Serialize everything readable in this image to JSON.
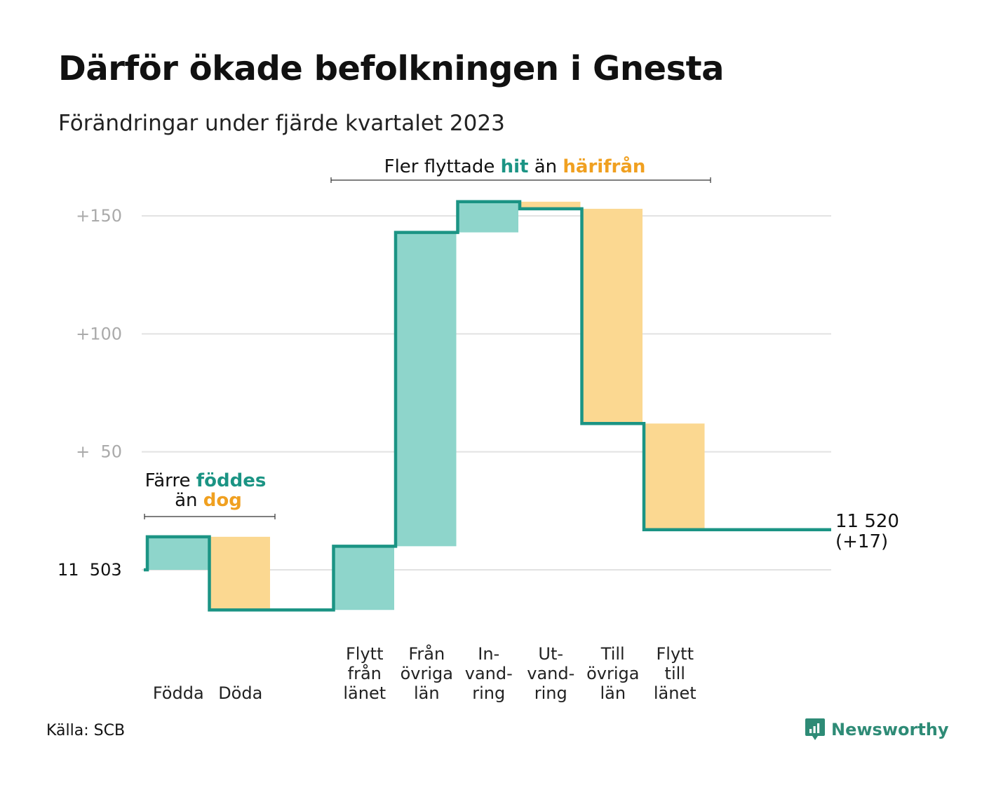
{
  "header": {
    "title": "Därför ökade befolkningen i Gnesta",
    "subtitle": "Förändringar under fjärde kvartalet 2023"
  },
  "source": "Källa: SCB",
  "brand": {
    "name": "Newsworthy"
  },
  "colors": {
    "inflow": "#8ed5cb",
    "outflow": "#fbd891",
    "line": "#1b9484",
    "teal_text": "#1b9484",
    "orange_text": "#f0a020",
    "grid": "#e2e2e2",
    "tick_text": "#aaaaaa"
  },
  "chart_data": {
    "type": "waterfall",
    "baseline": {
      "value": 11503,
      "label": "11  503"
    },
    "ylim": [
      -17,
      163
    ],
    "yticks": [
      {
        "value": 0,
        "label": ""
      },
      {
        "value": 50,
        "label": "+  50"
      },
      {
        "value": 100,
        "label": "+100"
      },
      {
        "value": 150,
        "label": "+150"
      }
    ],
    "steps": [
      {
        "label": [
          "Födda"
        ],
        "change": 14,
        "kind": "in"
      },
      {
        "label": [
          "Döda"
        ],
        "change": -31,
        "kind": "out"
      },
      {
        "label": [],
        "change": 0,
        "kind": "none"
      },
      {
        "label": [
          "Flytt",
          "från",
          "länet"
        ],
        "change": 27,
        "kind": "in"
      },
      {
        "label": [
          "Från",
          "övriga",
          "län"
        ],
        "change": 133,
        "kind": "in"
      },
      {
        "label": [
          "In-",
          "vand-",
          "ring"
        ],
        "change": 13,
        "kind": "in"
      },
      {
        "label": [
          "Ut-",
          "vand-",
          "ring"
        ],
        "change": -3,
        "kind": "out"
      },
      {
        "label": [
          "Till",
          "övriga",
          "län"
        ],
        "change": -91,
        "kind": "out"
      },
      {
        "label": [
          "Flytt",
          "till",
          "länet"
        ],
        "change": -45,
        "kind": "out"
      },
      {
        "label": [],
        "change": 0,
        "kind": "none"
      }
    ],
    "end": {
      "value": "11 520",
      "change": "(+17)"
    },
    "annotations": {
      "births": {
        "line1_pre": "Färre ",
        "line1_hl": "föddes",
        "line2_pre": "än ",
        "line2_hl": "dog"
      },
      "migration": {
        "pre": "Fler flyttade ",
        "hl1": "hit",
        "mid": " än ",
        "hl2": "härifrån"
      }
    },
    "grid": true
  }
}
